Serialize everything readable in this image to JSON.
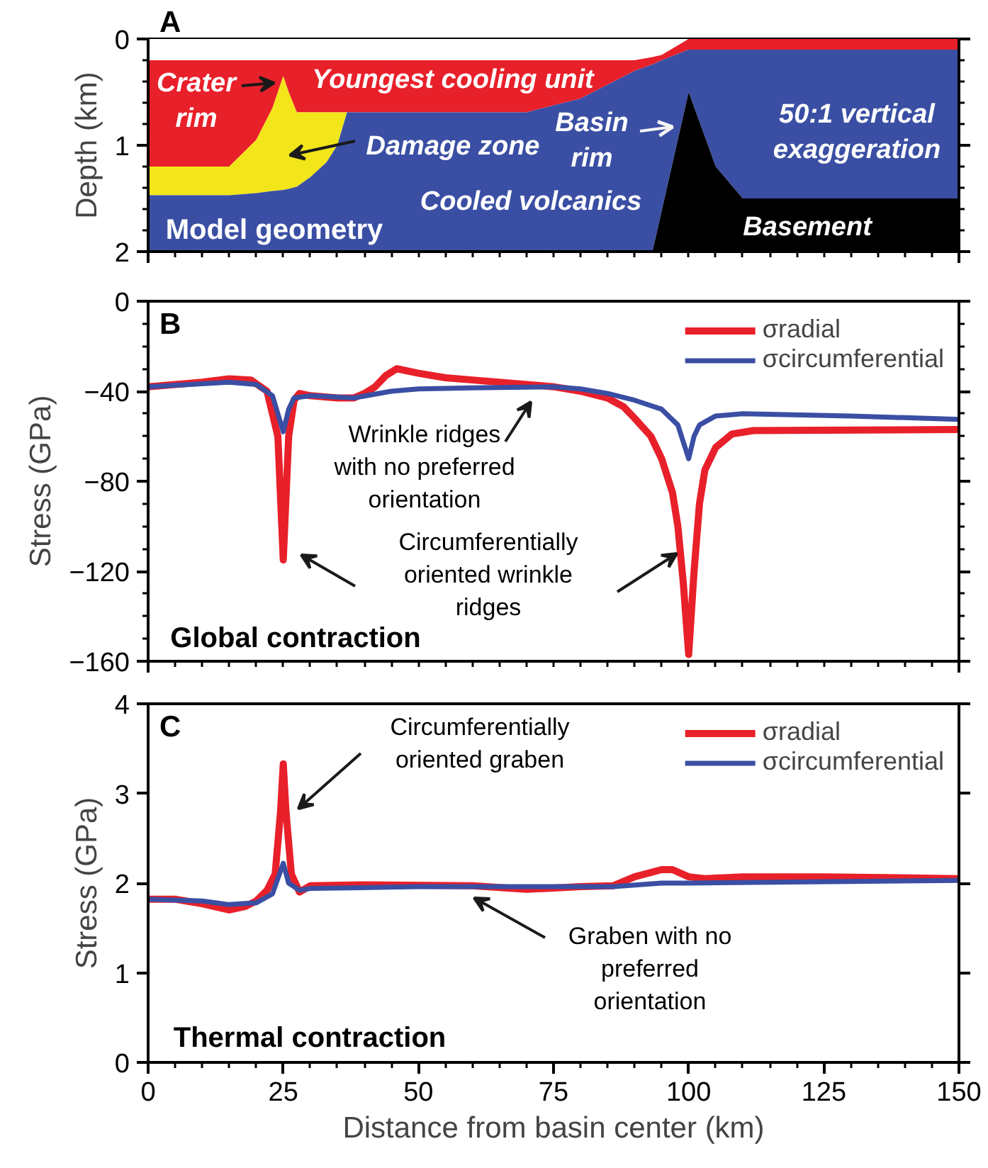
{
  "chart_data": [
    {
      "type": "area",
      "stacked": true,
      "title": "A",
      "ylabel": "Depth (km)",
      "xlim": [
        0,
        150
      ],
      "ylim": [
        2,
        0
      ],
      "x": [
        0,
        15,
        20,
        23,
        25,
        26,
        27.5,
        30,
        33,
        35,
        36.8,
        70,
        80,
        90,
        93.3,
        95,
        100,
        105,
        110,
        150
      ],
      "xticks": [
        0,
        {
          "value": 5,
          "label": null
        },
        {
          "value": 10,
          "label": null
        },
        {
          "value": 15,
          "label": null
        },
        {
          "value": 20,
          "label": null
        },
        {
          "value": 25,
          "label": null
        },
        {
          "value": 30,
          "label": null
        },
        {
          "value": 35,
          "label": null
        },
        {
          "value": 40,
          "label": null
        },
        {
          "value": 45,
          "label": null
        },
        {
          "value": 50,
          "label": null
        },
        {
          "value": 55,
          "label": null
        },
        {
          "value": 60,
          "label": null
        },
        {
          "value": 65,
          "label": null
        },
        {
          "value": 70,
          "label": null
        },
        {
          "value": 75,
          "label": null
        },
        {
          "value": 80,
          "label": null
        },
        {
          "value": 85,
          "label": null
        },
        {
          "value": 90,
          "label": null
        },
        {
          "value": 95,
          "label": null
        },
        {
          "value": 100,
          "label": null
        },
        {
          "value": 105,
          "label": null
        },
        {
          "value": 110,
          "label": null
        },
        {
          "value": 115,
          "label": null
        },
        {
          "value": 120,
          "label": null
        },
        {
          "value": 125,
          "label": null
        },
        {
          "value": 130,
          "label": null
        },
        {
          "value": 135,
          "label": null
        },
        {
          "value": 140,
          "label": null
        },
        {
          "value": 145,
          "label": null
        },
        150
      ],
      "yticks": [
        0,
        {
          "value": 0.2,
          "label": null
        },
        {
          "value": 0.4,
          "label": null
        },
        {
          "value": 0.6,
          "label": null
        },
        {
          "value": 0.8,
          "label": null
        },
        1,
        {
          "value": 1.2,
          "label": null
        },
        {
          "value": 1.4,
          "label": null
        },
        {
          "value": 1.6,
          "label": null
        },
        {
          "value": 1.8,
          "label": null
        },
        2
      ],
      "tick_labels": "y",
      "series": [
        {
          "color": "#ffffff",
          "values": [
            0.2,
            0.2,
            0.2,
            0.2,
            0.2,
            0.2,
            0.2,
            0.2,
            0.2,
            0.2,
            0.2,
            0.2,
            0.2,
            0.2,
            0.17,
            0.15,
            0,
            0,
            0,
            0
          ]
        },
        {
          "color": "#e8202a",
          "values": [
            1.0,
            1.0,
            0.75,
            0.45,
            0.15,
            0.3,
            0.49,
            0.49,
            0.49,
            0.49,
            0.49,
            0.49,
            0.36,
            0.1,
            0.07,
            0.05,
            0.1,
            0.1,
            0.1,
            0.1
          ]
        },
        {
          "color": "#f2e51a",
          "values": [
            0.27,
            0.27,
            0.5,
            0.78,
            1.07,
            0.91,
            0.7,
            0.61,
            0.47,
            0.31,
            0,
            0,
            0,
            0,
            0,
            0,
            0,
            0,
            0,
            0
          ]
        },
        {
          "color": "#3a4fa3",
          "values": [
            0.53,
            0.53,
            0.55,
            0.57,
            0.58,
            0.59,
            0.61,
            0.7,
            0.84,
            1.0,
            1.31,
            1.31,
            1.44,
            1.7,
            1.76,
            1.42,
            0.4,
            1.1,
            1.4,
            1.4
          ]
        },
        {
          "color": "#000000",
          "values": [
            0,
            0,
            0,
            0,
            0,
            0,
            0,
            0,
            0,
            0,
            0,
            0,
            0,
            0,
            0,
            0.38,
            1.5,
            0.8,
            0.5,
            0.5
          ]
        }
      ],
      "annotations": [
        "Crater\nrim",
        "Youngest cooling unit",
        "Damage zone",
        "Basin\nrim",
        "Cooled volcanics",
        "50:1 vertical\nexaggeration",
        "Basement",
        "Model geometry"
      ]
    },
    {
      "type": "line",
      "title": "B",
      "ylabel": "Stress (GPa)",
      "xlim": [
        0,
        150
      ],
      "ylim": [
        -160,
        0
      ],
      "xticks": [
        0,
        {
          "value": 5,
          "label": null
        },
        {
          "value": 10,
          "label": null
        },
        {
          "value": 15,
          "label": null
        },
        {
          "value": 20,
          "label": null
        },
        {
          "value": 25,
          "label": null
        },
        {
          "value": 30,
          "label": null
        },
        {
          "value": 35,
          "label": null
        },
        {
          "value": 40,
          "label": null
        },
        {
          "value": 45,
          "label": null
        },
        {
          "value": 50,
          "label": null
        },
        {
          "value": 55,
          "label": null
        },
        {
          "value": 60,
          "label": null
        },
        {
          "value": 65,
          "label": null
        },
        {
          "value": 70,
          "label": null
        },
        {
          "value": 75,
          "label": null
        },
        {
          "value": 80,
          "label": null
        },
        {
          "value": 85,
          "label": null
        },
        {
          "value": 90,
          "label": null
        },
        {
          "value": 95,
          "label": null
        },
        {
          "value": 100,
          "label": null
        },
        {
          "value": 105,
          "label": null
        },
        {
          "value": 110,
          "label": null
        },
        {
          "value": 115,
          "label": null
        },
        {
          "value": 120,
          "label": null
        },
        {
          "value": 125,
          "label": null
        },
        {
          "value": 130,
          "label": null
        },
        {
          "value": 135,
          "label": null
        },
        {
          "value": 140,
          "label": null
        },
        {
          "value": 145,
          "label": null
        },
        150
      ],
      "yticks": [
        -160,
        {
          "value": -150,
          "label": null
        },
        {
          "value": -140,
          "label": null
        },
        {
          "value": -130,
          "label": null
        },
        -120,
        {
          "value": -110,
          "label": null
        },
        {
          "value": -100,
          "label": null
        },
        {
          "value": -90,
          "label": null
        },
        -80,
        {
          "value": -70,
          "label": null
        },
        {
          "value": -60,
          "label": null
        },
        {
          "value": -50,
          "label": null
        },
        -40,
        {
          "value": -30,
          "label": null
        },
        {
          "value": -20,
          "label": null
        },
        {
          "value": -10,
          "label": null
        },
        0
      ],
      "tick_labels": "y",
      "legend": "top right",
      "series": [
        {
          "name": "σradial",
          "color": "#e8202a",
          "x": [
            0,
            10,
            15,
            19,
            22,
            24,
            25,
            26,
            27,
            28,
            30,
            35,
            38,
            40,
            42,
            44,
            46,
            50,
            55,
            60,
            70,
            75,
            80,
            85,
            88,
            90,
            93,
            95,
            97,
            98,
            99,
            100,
            101,
            102,
            103,
            105,
            108,
            112,
            150
          ],
          "values": [
            -38,
            -36,
            -34.5,
            -35,
            -40,
            -60,
            -115,
            -60,
            -44,
            -41,
            -42,
            -43,
            -43,
            -41,
            -38,
            -33,
            -30,
            -32,
            -34,
            -35,
            -37,
            -38,
            -40,
            -43,
            -47,
            -52,
            -60,
            -70,
            -85,
            -100,
            -125,
            -157,
            -120,
            -90,
            -75,
            -65,
            -59,
            -57.5,
            -57
          ]
        },
        {
          "name": "σcircumferential",
          "color": "#3a4fa3",
          "x": [
            0,
            15,
            20,
            23,
            25,
            26,
            27,
            30,
            38,
            45,
            50,
            60,
            75,
            80,
            85,
            90,
            95,
            98,
            100,
            101,
            102,
            105,
            110,
            130,
            150
          ],
          "values": [
            -38,
            -36,
            -37,
            -42,
            -58,
            -48,
            -43,
            -42,
            -43,
            -40,
            -39,
            -38.5,
            -38,
            -39,
            -41,
            -44,
            -48,
            -55,
            -70,
            -60,
            -55,
            -51,
            -50,
            -51,
            -52.5
          ]
        }
      ],
      "annotations": [
        "Wrinkle ridges\nwith no preferred\norientation",
        "Circumferentially\noriented wrinkle\nridges",
        "Global contraction"
      ]
    },
    {
      "type": "line",
      "title": "C",
      "ylabel": "Stress (GPa)",
      "xlabel": "Distance from basin center (km)",
      "xlim": [
        0,
        150
      ],
      "ylim": [
        0,
        4
      ],
      "xticks": [
        0,
        {
          "value": 5,
          "label": null
        },
        {
          "value": 10,
          "label": null
        },
        {
          "value": 15,
          "label": null
        },
        {
          "value": 20,
          "label": null
        },
        25,
        {
          "value": 30,
          "label": null
        },
        {
          "value": 35,
          "label": null
        },
        {
          "value": 40,
          "label": null
        },
        {
          "value": 45,
          "label": null
        },
        50,
        {
          "value": 55,
          "label": null
        },
        {
          "value": 60,
          "label": null
        },
        {
          "value": 65,
          "label": null
        },
        {
          "value": 70,
          "label": null
        },
        75,
        {
          "value": 80,
          "label": null
        },
        {
          "value": 85,
          "label": null
        },
        {
          "value": 90,
          "label": null
        },
        {
          "value": 95,
          "label": null
        },
        100,
        {
          "value": 105,
          "label": null
        },
        {
          "value": 110,
          "label": null
        },
        {
          "value": 115,
          "label": null
        },
        {
          "value": 120,
          "label": null
        },
        125,
        {
          "value": 130,
          "label": null
        },
        {
          "value": 135,
          "label": null
        },
        {
          "value": 140,
          "label": null
        },
        {
          "value": 145,
          "label": null
        },
        150
      ],
      "yticks": [
        0,
        1,
        2,
        3,
        4
      ],
      "legend": "top right",
      "series": [
        {
          "name": "σradial",
          "color": "#e8202a",
          "x": [
            0,
            5,
            10,
            15,
            18,
            20,
            22,
            23.5,
            24.5,
            25,
            25.5,
            26.5,
            28,
            30,
            40,
            60,
            70,
            80,
            86,
            90,
            95,
            97,
            100,
            103,
            110,
            125,
            150
          ],
          "values": [
            1.82,
            1.82,
            1.77,
            1.7,
            1.74,
            1.8,
            1.92,
            2.1,
            2.8,
            3.33,
            2.8,
            2.1,
            1.9,
            1.97,
            1.98,
            1.97,
            1.93,
            1.96,
            1.97,
            2.07,
            2.15,
            2.15,
            2.07,
            2.05,
            2.07,
            2.07,
            2.05
          ]
        },
        {
          "name": "σcircumferential",
          "color": "#3a4fa3",
          "x": [
            0,
            10,
            15,
            20,
            23,
            25,
            26,
            28,
            30,
            50,
            75,
            86,
            95,
            100,
            150
          ],
          "values": [
            1.82,
            1.8,
            1.76,
            1.78,
            1.88,
            2.22,
            2.0,
            1.92,
            1.94,
            1.96,
            1.96,
            1.96,
            2.0,
            2.0,
            2.03
          ]
        }
      ],
      "annotations": [
        "Circumferentially\noriented graben",
        "Graben with no\npreferred\norientation",
        "Thermal contraction"
      ]
    }
  ]
}
